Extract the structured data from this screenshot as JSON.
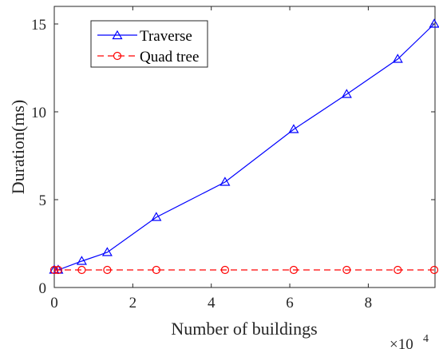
{
  "chart_data": {
    "type": "line",
    "xlabel": "Number of buildings",
    "ylabel": "Duration(ms)",
    "x_multiplier": "×10",
    "x_multiplier_exponent": "4",
    "xlim": [
      0,
      97000
    ],
    "ylim": [
      0,
      16
    ],
    "x_ticks": [
      0,
      20000,
      40000,
      60000,
      80000
    ],
    "x_tick_labels": [
      "0",
      "2",
      "4",
      "6",
      "8"
    ],
    "y_ticks": [
      0,
      5,
      10,
      15
    ],
    "y_tick_labels": [
      "0",
      "5",
      "10",
      "15"
    ],
    "grid": false,
    "legend_position": "top-left",
    "series": [
      {
        "name": "Traverse",
        "color": "#0000ff",
        "line_style": "solid",
        "marker": "triangle",
        "x": [
          0,
          1000,
          7000,
          13500,
          26000,
          43500,
          61000,
          74500,
          87500,
          96800
        ],
        "y": [
          1,
          1,
          1.5,
          2,
          4,
          6,
          9,
          11,
          13,
          15
        ]
      },
      {
        "name": "Quad tree",
        "color": "#ff0000",
        "line_style": "dashed",
        "marker": "circle",
        "x": [
          0,
          1000,
          7000,
          13500,
          26000,
          43500,
          61000,
          74500,
          87500,
          96800
        ],
        "y": [
          1,
          1,
          1,
          1,
          1,
          1,
          1,
          1,
          1,
          1
        ]
      }
    ]
  }
}
